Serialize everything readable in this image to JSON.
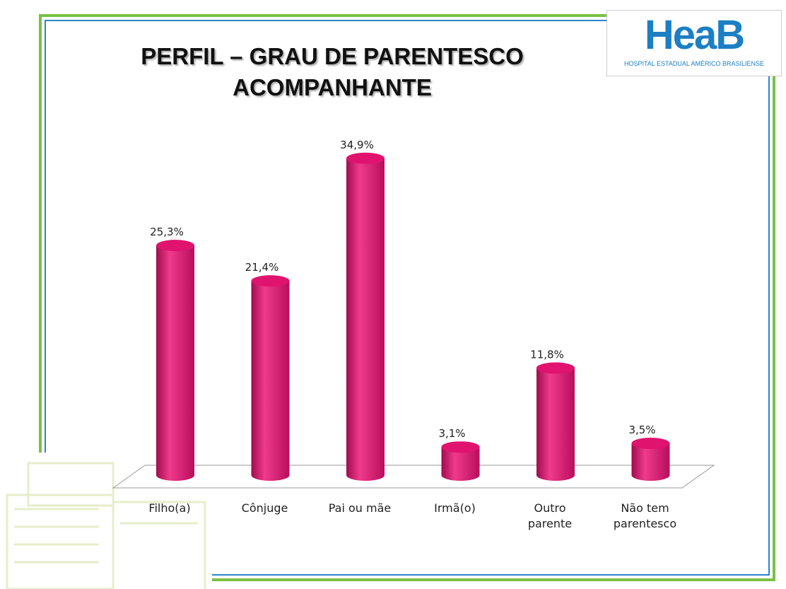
{
  "chart_data": {
    "type": "bar",
    "title": "PERFIL – GRAU DE PARENTESCO ACOMPANHANTE",
    "categories": [
      "Filho(a)",
      "Cônjuge",
      "Pai ou mãe",
      "Irmã(o)",
      "Outro parente",
      "Não tem parentesco"
    ],
    "values": [
      25.3,
      21.4,
      34.9,
      3.1,
      11.8,
      3.5
    ],
    "value_labels": [
      "25,3%",
      "21,4%",
      "34,9%",
      "3,1%",
      "11,8%",
      "3,5%"
    ],
    "color": "#e0136f"
  },
  "logo": {
    "mark": "HeaB",
    "name": "HOSPITAL ESTADUAL AMÉRICO BRASILIENSE"
  }
}
